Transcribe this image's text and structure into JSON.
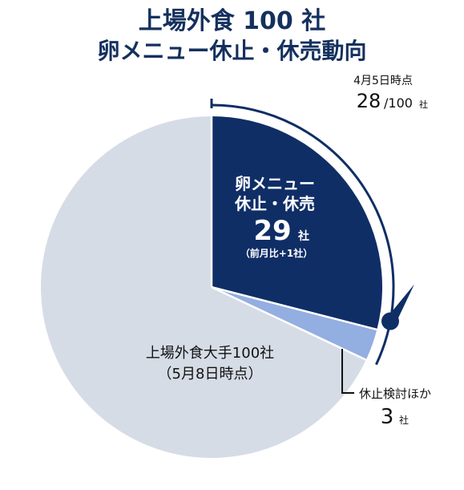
{
  "chart_data": {
    "type": "pie",
    "title_line1": "上場外食 100 社",
    "title_line2": "卵メニュー休止・休売動向",
    "total": 100,
    "slices": [
      {
        "label_line1": "卵メニュー",
        "label_line2": "休止・休売",
        "value": 29,
        "value_text": "29",
        "unit": "社",
        "note": "（前月比+1社）",
        "color": "#0f2e66"
      },
      {
        "label": "休止検討ほか",
        "value": 3,
        "value_text": "3",
        "unit": "社",
        "color": "#93aee0"
      },
      {
        "label_line1": "上場外食大手100社",
        "label_line2": "（5月8日時点）",
        "value": 68,
        "color": "#d6dce6"
      }
    ],
    "previous": {
      "label": "4月5日時点",
      "value": 28,
      "value_text": "28",
      "total_text": "/100",
      "unit": "社",
      "color": "#0f2e66"
    }
  }
}
